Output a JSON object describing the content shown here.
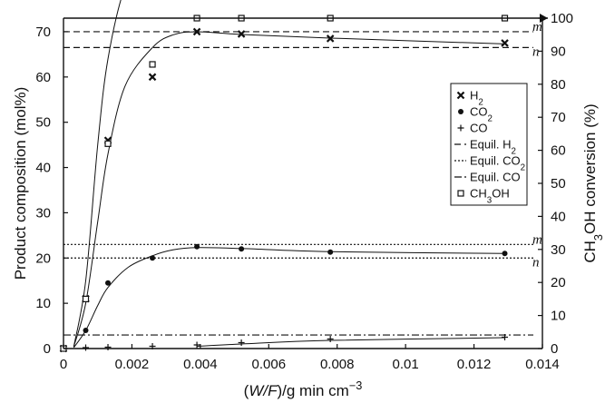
{
  "chart_data": {
    "type": "scatter",
    "x_axis": {
      "label_parts": [
        {
          "t": "(",
          "s": "n"
        },
        {
          "t": "W/F",
          "s": "i"
        },
        {
          "t": ")/g min cm",
          "s": "n"
        },
        {
          "t": "−3",
          "s": "sup"
        }
      ],
      "lim": [
        0,
        0.014
      ],
      "ticks": [
        0,
        0.002,
        0.004,
        0.006,
        0.008,
        0.01,
        0.012,
        0.014
      ],
      "tick_labels": [
        "0",
        "0.002",
        "0.004",
        "0.006",
        "0.008",
        "0.01",
        "0.012",
        "0.014"
      ]
    },
    "y_left": {
      "label": "Product composition (mol%)",
      "lim": [
        0,
        73
      ],
      "ticks": [
        0,
        10,
        20,
        30,
        40,
        50,
        60,
        70
      ],
      "tick_labels": [
        "0",
        "10",
        "20",
        "30",
        "40",
        "50",
        "60",
        "70"
      ]
    },
    "y_right": {
      "label_parts": [
        {
          "t": "CH",
          "s": "n"
        },
        {
          "t": "3",
          "s": "sub"
        },
        {
          "t": "OH conversion (%)",
          "s": "n"
        }
      ],
      "lim": [
        0,
        100
      ],
      "ticks": [
        0,
        10,
        20,
        30,
        40,
        50,
        60,
        70,
        80,
        90,
        100
      ],
      "tick_labels": [
        "0",
        "10",
        "20",
        "30",
        "40",
        "50",
        "60",
        "70",
        "80",
        "90",
        "100"
      ]
    },
    "series": [
      {
        "id": "h2",
        "marker": "x",
        "axis": "left",
        "x": [
          0,
          0.00065,
          0.0013,
          0.0026,
          0.0039,
          0.0052,
          0.0078,
          0.0129
        ],
        "y": [
          0,
          11,
          46,
          60,
          70,
          69.5,
          68.5,
          67.5
        ]
      },
      {
        "id": "co2",
        "marker": "dot",
        "axis": "left",
        "x": [
          0,
          0.00065,
          0.0013,
          0.0026,
          0.0039,
          0.0052,
          0.0078,
          0.0129
        ],
        "y": [
          0,
          4,
          14.5,
          20,
          22.5,
          22,
          21.3,
          21
        ]
      },
      {
        "id": "co",
        "marker": "plus",
        "axis": "left",
        "x": [
          0,
          0.00065,
          0.0013,
          0.0026,
          0.0039,
          0.0052,
          0.0078,
          0.0129
        ],
        "y": [
          0,
          0.2,
          0.3,
          0.5,
          0.8,
          1.3,
          2.1,
          2.5
        ]
      },
      {
        "id": "ch3oh",
        "marker": "square",
        "axis": "right",
        "x": [
          0,
          0.00065,
          0.0013,
          0.0026,
          0.0039,
          0.0052,
          0.0078,
          0.0129
        ],
        "y": [
          0,
          15,
          62,
          86,
          100,
          100,
          100,
          100
        ]
      }
    ],
    "curves": [
      {
        "id": "h2-fit",
        "points": [
          [
            0.0003,
            0.4
          ],
          [
            0.00065,
            10
          ],
          [
            0.001,
            28
          ],
          [
            0.0013,
            43
          ],
          [
            0.0018,
            58
          ],
          [
            0.0026,
            66.5
          ],
          [
            0.0032,
            69.3
          ],
          [
            0.0039,
            70
          ],
          [
            0.0052,
            69.4
          ],
          [
            0.0078,
            68.6
          ],
          [
            0.0129,
            67.3
          ]
        ]
      },
      {
        "id": "co2-fit",
        "points": [
          [
            0.0003,
            0.2
          ],
          [
            0.00065,
            4
          ],
          [
            0.001,
            9.5
          ],
          [
            0.0013,
            13.5
          ],
          [
            0.0019,
            18
          ],
          [
            0.0026,
            20.5
          ],
          [
            0.0032,
            21.8
          ],
          [
            0.0039,
            22.3
          ],
          [
            0.0052,
            22.1
          ],
          [
            0.0078,
            21.4
          ],
          [
            0.0129,
            21
          ]
        ]
      },
      {
        "id": "co-fit",
        "points": [
          [
            0.0039,
            0.5
          ],
          [
            0.0052,
            1
          ],
          [
            0.0078,
            1.8
          ],
          [
            0.0129,
            2.4
          ]
        ]
      },
      {
        "id": "ch3oh-fit",
        "points": [
          [
            0.0003,
            0.4
          ],
          [
            0.00065,
            15
          ],
          [
            0.001,
            45
          ],
          [
            0.0013,
            64
          ],
          [
            0.0018,
            80
          ],
          [
            0.0026,
            92
          ],
          [
            0.0032,
            97.5
          ],
          [
            0.0039,
            100
          ],
          [
            0.0075,
            100
          ],
          [
            0.0138,
            100
          ]
        ]
      }
    ],
    "equilibrium_lines": [
      {
        "id": "eq-h2-m",
        "style": "dashed",
        "y": 70,
        "label": "m"
      },
      {
        "id": "eq-h2-n",
        "style": "dashed",
        "y": 66.5,
        "label": "n"
      },
      {
        "id": "eq-co2-m",
        "style": "dotted",
        "y": 23,
        "label": "m"
      },
      {
        "id": "eq-co2-n",
        "style": "dotted",
        "y": 20,
        "label": "n"
      },
      {
        "id": "eq-co",
        "style": "dashdot",
        "y": 3,
        "label": ""
      }
    ],
    "legend": {
      "position": "right",
      "entries": [
        {
          "marker": "x",
          "parts": [
            {
              "t": "H",
              "s": "n"
            },
            {
              "t": "2",
              "s": "sub"
            }
          ]
        },
        {
          "marker": "dot",
          "parts": [
            {
              "t": "CO",
              "s": "n"
            },
            {
              "t": "2",
              "s": "sub"
            }
          ]
        },
        {
          "marker": "plus",
          "parts": [
            {
              "t": "CO",
              "s": "n"
            }
          ]
        },
        {
          "marker": "dashed",
          "parts": [
            {
              "t": "Equil. H",
              "s": "n"
            },
            {
              "t": "2",
              "s": "sub"
            }
          ]
        },
        {
          "marker": "dotted",
          "parts": [
            {
              "t": "Equil. CO",
              "s": "n"
            },
            {
              "t": "2",
              "s": "sub"
            }
          ]
        },
        {
          "marker": "dashdot",
          "parts": [
            {
              "t": "Equil. CO",
              "s": "n"
            }
          ]
        },
        {
          "marker": "square",
          "parts": [
            {
              "t": "CH",
              "s": "n"
            },
            {
              "t": "3",
              "s": "sub"
            },
            {
              "t": "OH",
              "s": "n"
            }
          ]
        }
      ]
    },
    "grid": false,
    "colors": {
      "ink": "#111111",
      "background": "#ffffff"
    }
  }
}
